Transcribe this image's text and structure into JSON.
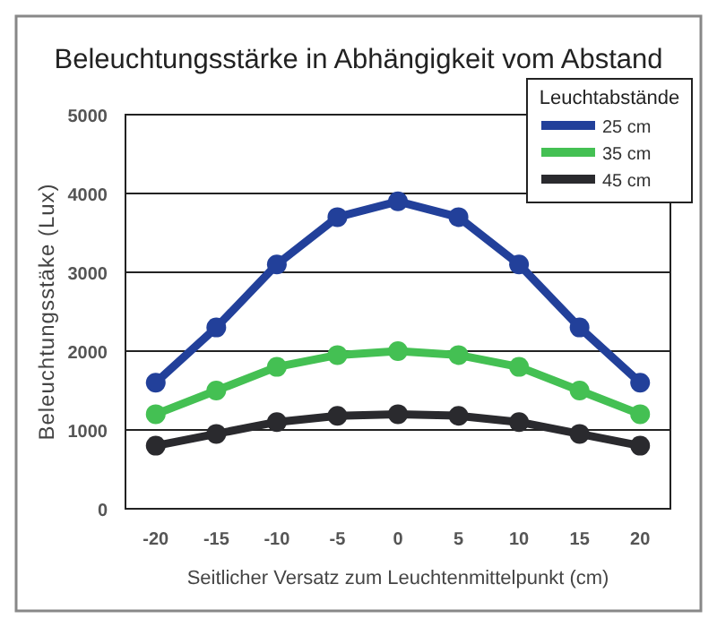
{
  "chart_data": {
    "type": "line",
    "title": "Beleuchtungsstärke in Abhängigkeit vom Abstand",
    "xlabel": "Seitlicher Versatz zum Leuchtenmittelpunkt (cm)",
    "ylabel": "Beleuchtungsstäke (Lux)",
    "legend_title": "Leuchtabstände",
    "categories": [
      "-20",
      "-15",
      "-10",
      "-5",
      "0",
      "5",
      "10",
      "15",
      "20"
    ],
    "series": [
      {
        "name": "25 cm",
        "color": "#22409a",
        "values": [
          1600,
          2300,
          3100,
          3700,
          3900,
          3700,
          3100,
          2300,
          1600
        ]
      },
      {
        "name": "35 cm",
        "color": "#44c053",
        "values": [
          1200,
          1500,
          1800,
          1950,
          2000,
          1950,
          1800,
          1500,
          1200
        ]
      },
      {
        "name": "45 cm",
        "color": "#2a2a2e",
        "values": [
          800,
          950,
          1100,
          1180,
          1200,
          1180,
          1100,
          950,
          800
        ]
      }
    ],
    "ylim": [
      0,
      5000
    ],
    "yticks": [
      0,
      1000,
      2000,
      3000,
      4000,
      5000
    ],
    "grid": "y",
    "legend": "top right",
    "marker": "circle",
    "line_style": "solid"
  }
}
